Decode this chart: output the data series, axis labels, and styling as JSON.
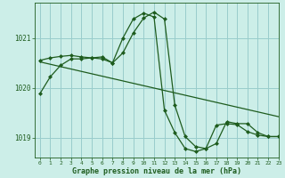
{
  "background_color": "#cceee8",
  "plot_bg_color": "#cceee8",
  "grid_color": "#99cccc",
  "line_color": "#1e5c1e",
  "marker_color": "#1e5c1e",
  "xlabel": "Graphe pression niveau de la mer (hPa)",
  "ylim": [
    1018.6,
    1021.7
  ],
  "xlim": [
    -0.5,
    23
  ],
  "yticks": [
    1019,
    1020,
    1021
  ],
  "xticks": [
    0,
    1,
    2,
    3,
    4,
    5,
    6,
    7,
    8,
    9,
    10,
    11,
    12,
    13,
    14,
    15,
    16,
    17,
    18,
    19,
    20,
    21,
    22,
    23
  ],
  "series1": [
    1019.88,
    1020.22,
    1020.45,
    1020.58,
    1020.58,
    1020.6,
    1020.62,
    1020.5,
    1020.7,
    1021.1,
    1021.4,
    1021.52,
    1021.38,
    1019.65,
    1019.02,
    1018.82,
    1018.78,
    1018.88,
    1019.32,
    1019.28,
    1019.28,
    1019.1,
    1019.02,
    1019.02
  ],
  "series2": [
    1020.55,
    1020.6,
    1020.63,
    1020.65,
    1020.62,
    1020.6,
    1020.58,
    1020.5,
    1021.0,
    1021.38,
    1021.5,
    1021.42,
    1019.55,
    1019.1,
    1018.78,
    1018.72,
    1018.78,
    1019.25,
    1019.28,
    1019.26,
    1019.12,
    1019.05,
    1019.02,
    1019.02
  ],
  "series3_x": [
    0,
    23
  ],
  "series3_y": [
    1020.52,
    1019.42
  ]
}
